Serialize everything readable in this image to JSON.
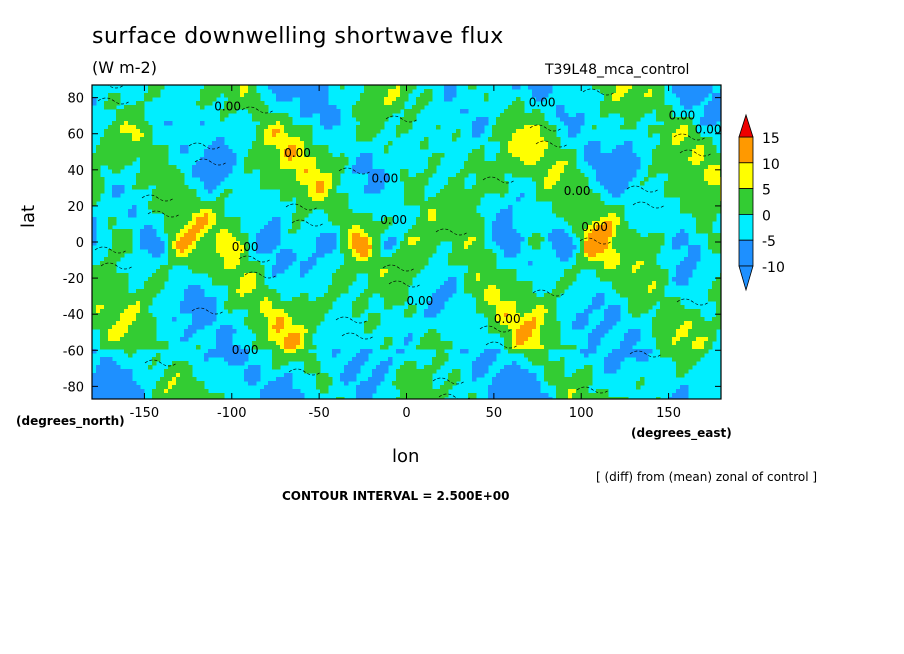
{
  "chart_data": {
    "type": "heatmap",
    "title": "surface downwelling shortwave flux",
    "units": "(W m-2)",
    "experiment": "T39L48_mca_control",
    "xlabel": "lon",
    "ylabel": "lat",
    "x_units_label": "(degrees_east)",
    "y_units_label": "(degrees_north)",
    "xlim": [
      -180,
      180
    ],
    "ylim": [
      -87,
      87
    ],
    "x_ticks": [
      -150,
      -100,
      -50,
      0,
      50,
      100,
      150
    ],
    "y_ticks": [
      80,
      60,
      40,
      20,
      0,
      -20,
      -40,
      -60,
      -80
    ],
    "x_tick_labels": [
      "-150",
      "-100",
      "-50",
      "0",
      "50",
      "100",
      "150"
    ],
    "y_tick_labels": [
      "80",
      "60",
      "40",
      "20",
      "0",
      "-20",
      "-40",
      "-60",
      "-80"
    ],
    "contour_line_label": "0.00",
    "contour_interval_text": "CONTOUR INTERVAL = 2.500E+00",
    "note": "[ (diff) from (mean) zonal of control ]",
    "colorbar": {
      "levels": [
        -10,
        -5,
        0,
        5,
        10,
        15
      ],
      "labels": [
        "15",
        "10",
        "5",
        "0",
        "-5",
        "-10"
      ],
      "colors": [
        "#1e90ff",
        "#00eeff",
        "#33cc33",
        "#ffff00",
        "#ff9900",
        "#ee0000"
      ],
      "extend": "both"
    },
    "field_colors": {
      "negative_strong": "#1e90ff",
      "negative": "#00eeff",
      "positive": "#33cc33",
      "positive_strong": "#ffff00",
      "high": "#ff9900"
    }
  }
}
